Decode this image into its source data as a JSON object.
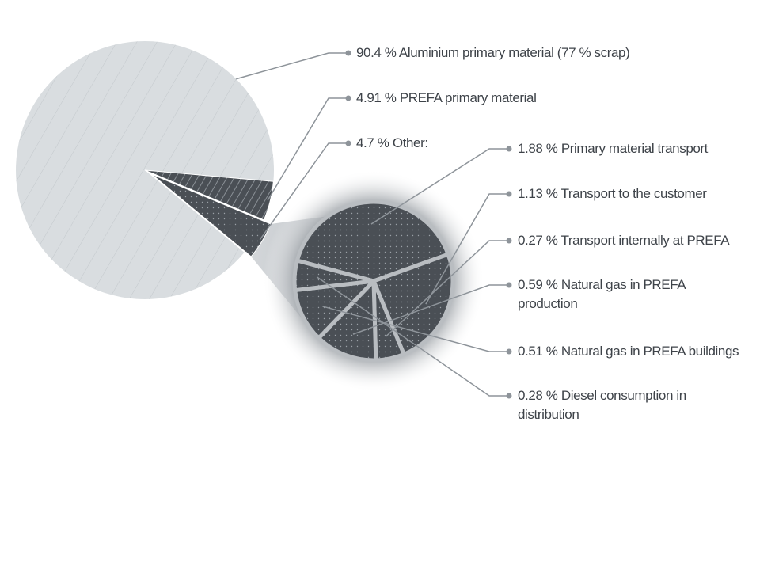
{
  "chart_data": [
    {
      "type": "pie",
      "categories": [
        "Aluminium primary material (77 % scrap)",
        "PREFA primary material",
        "Other:"
      ],
      "values": [
        90.4,
        4.91,
        4.7
      ],
      "value_labels": [
        "90.4 %",
        "4.91 %",
        "4.7 %"
      ],
      "colors": [
        "#d9dde0",
        "#4a4f55",
        "#4a4f55"
      ]
    },
    {
      "type": "pie",
      "categories": [
        "Primary material transport",
        "Transport to the customer",
        "Transport internally at PREFA",
        "Natural gas in PREFA production",
        "Natural gas in PREFA buildings",
        "Diesel consumption in distribution"
      ],
      "values": [
        1.88,
        1.13,
        0.27,
        0.59,
        0.51,
        0.28
      ],
      "value_labels": [
        "1.88 %",
        "1.13 %",
        "0.27 %",
        "0.59 %",
        "0.51 %",
        "0.28 %"
      ],
      "color": "#4a4f55"
    }
  ]
}
